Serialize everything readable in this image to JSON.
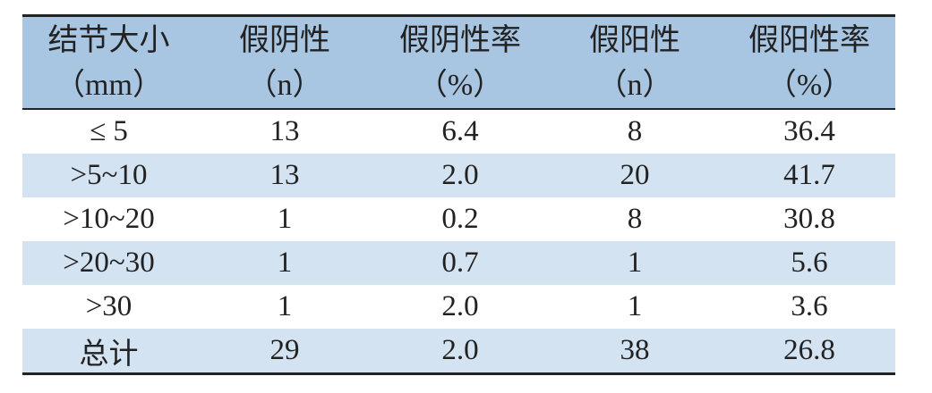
{
  "table": {
    "headers": [
      [
        "结节大小",
        "（mm）"
      ],
      [
        "假阴性",
        "（n）"
      ],
      [
        "假阴性率",
        "（%）"
      ],
      [
        "假阳性",
        "（n）"
      ],
      [
        "假阳性率",
        "（%）"
      ]
    ],
    "rows": [
      [
        "≤ 5",
        "13",
        "6.4",
        "8",
        "36.4"
      ],
      [
        ">5~10",
        "13",
        "2.0",
        "20",
        "41.7"
      ],
      [
        ">10~20",
        "1",
        "0.2",
        "8",
        "30.8"
      ],
      [
        ">20~30",
        "1",
        "0.7",
        "1",
        "5.6"
      ],
      [
        ">30",
        "1",
        "2.0",
        "1",
        "3.6"
      ],
      [
        "总计",
        "29",
        "2.0",
        "38",
        "26.8"
      ]
    ]
  }
}
